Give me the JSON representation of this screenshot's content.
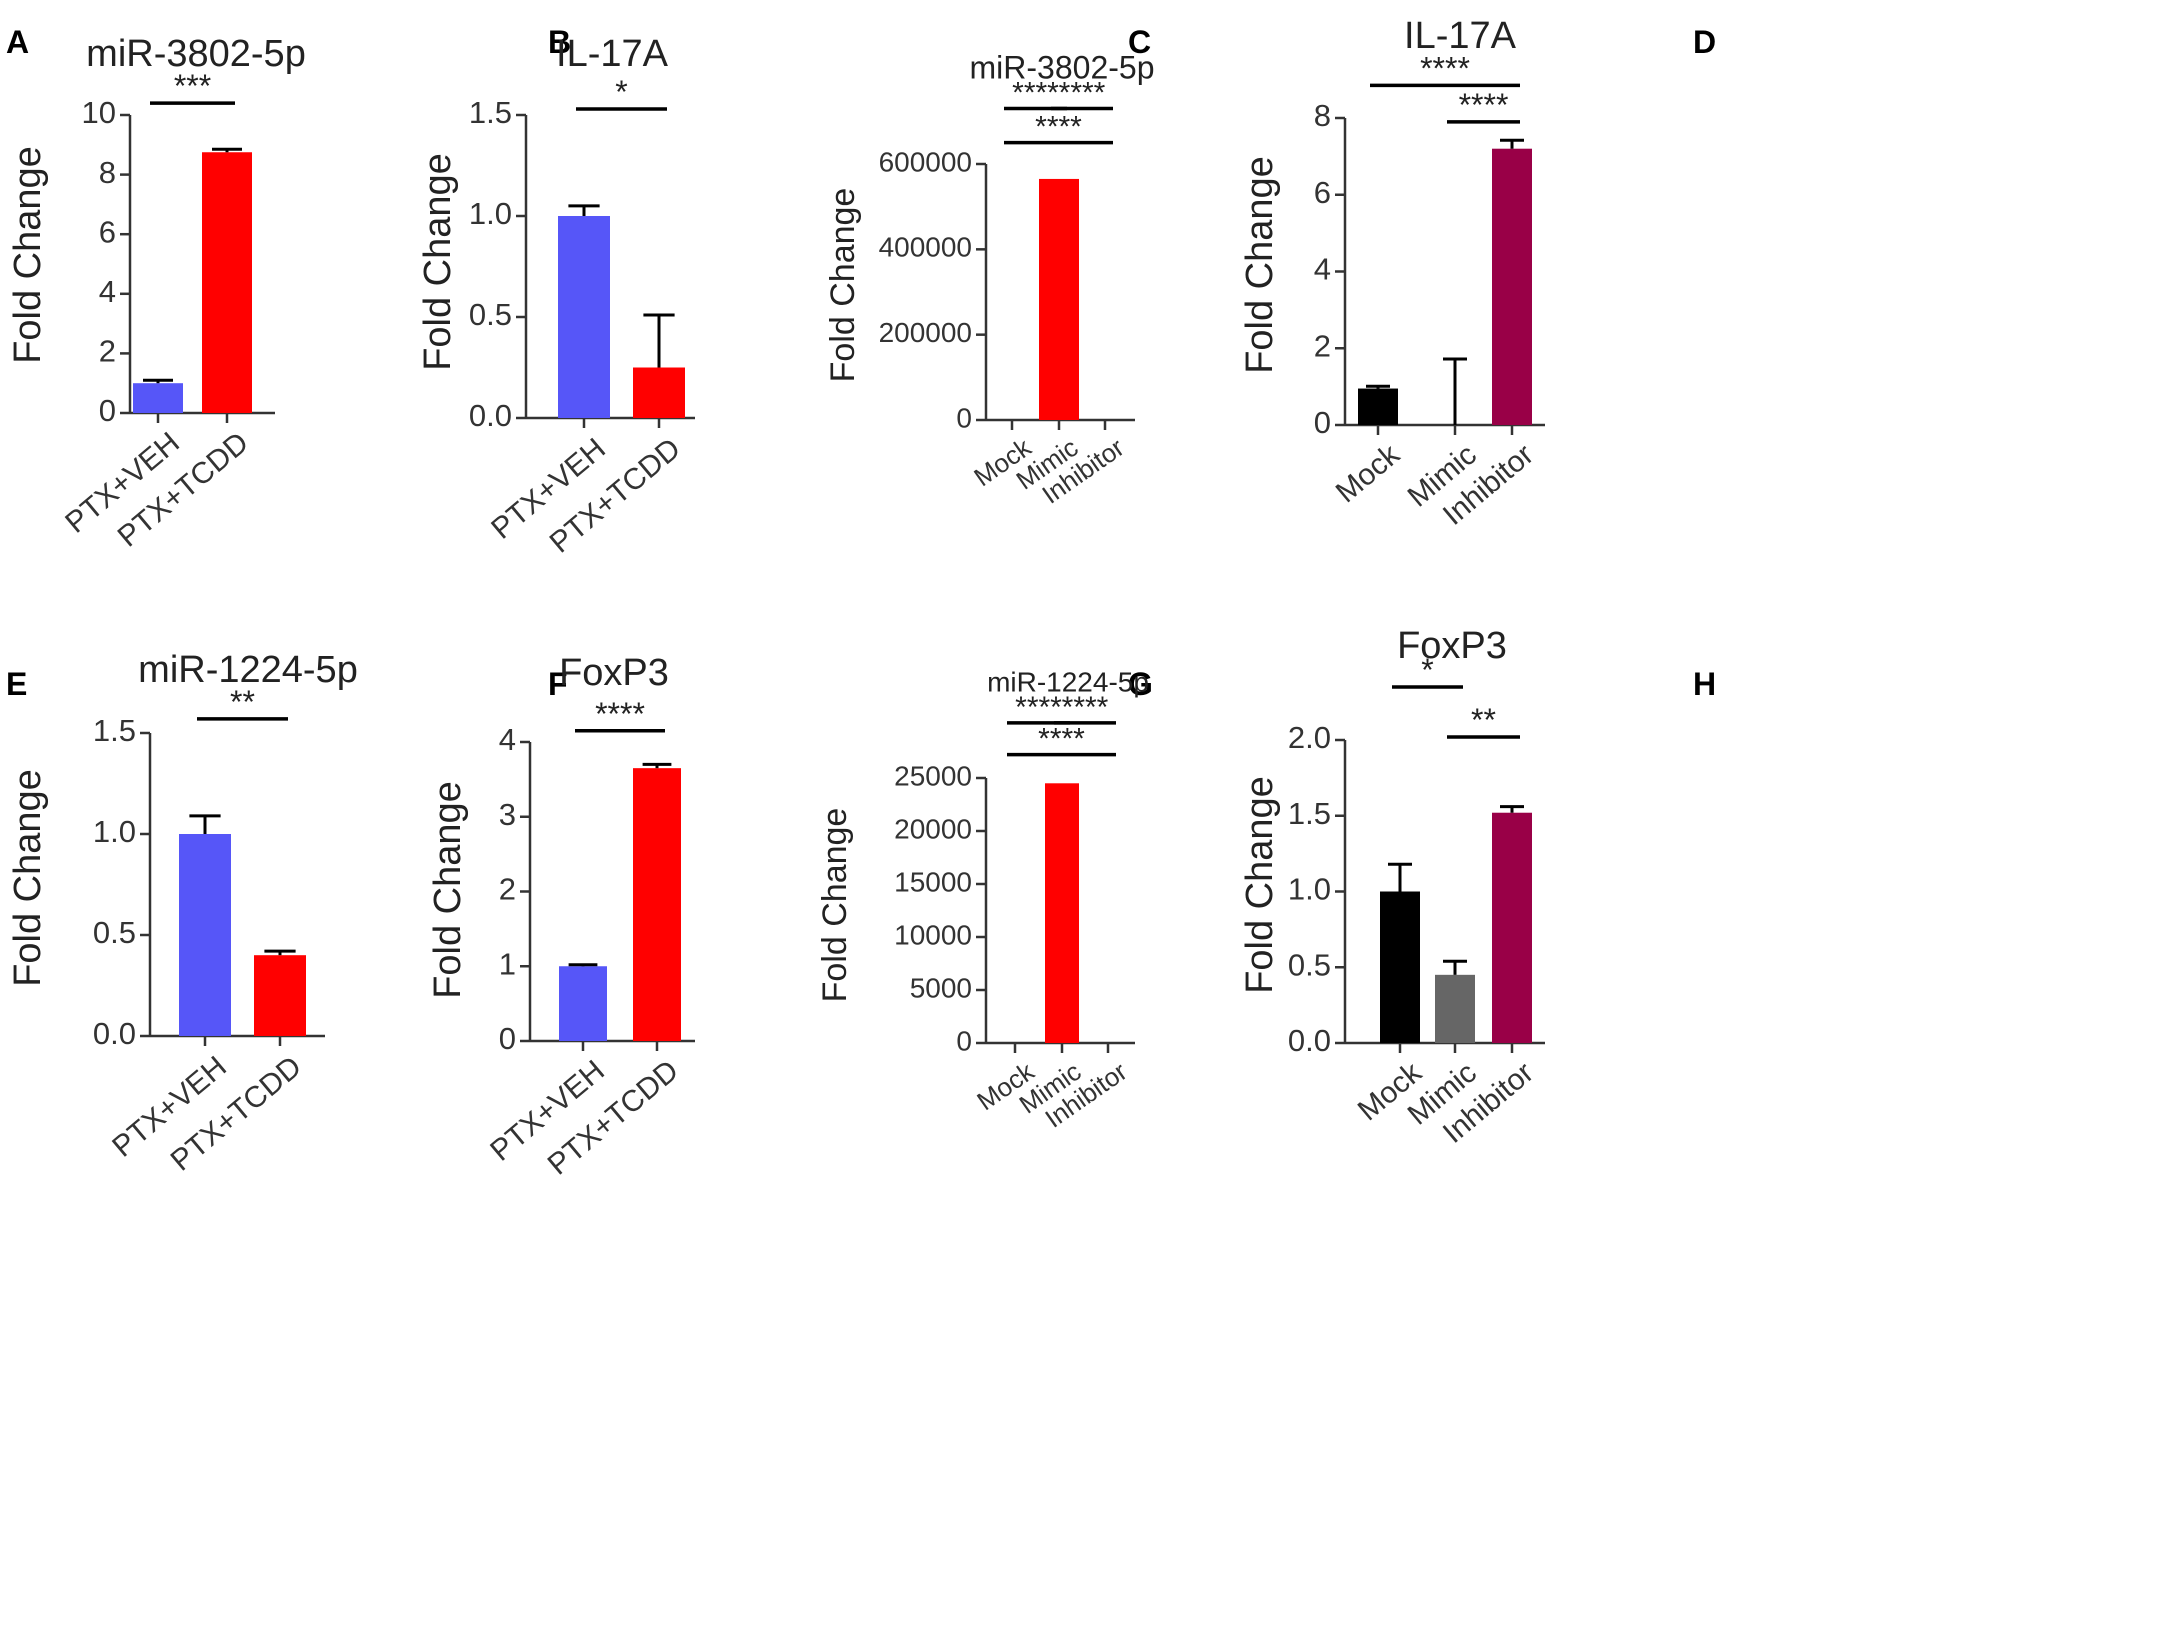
{
  "chart_data": [
    {
      "panel": "A",
      "type": "bar",
      "title": "miR-3802-5p",
      "ylabel": "Fold Change",
      "xlabel": "",
      "ylim": [
        0,
        10
      ],
      "yticks": [
        0,
        2,
        4,
        6,
        8,
        10
      ],
      "ytick_labels": [
        "0",
        "2",
        "4",
        "6",
        "8",
        "10"
      ],
      "categories": [
        "PTX+VEH",
        "PTX+TCDD"
      ],
      "values": [
        1.0,
        8.75
      ],
      "errors": [
        0.1,
        0.1
      ],
      "colors": [
        "#5656f8",
        "#ff0000"
      ],
      "significance": [
        {
          "from": 0,
          "to": 1,
          "label": "***",
          "y": 10.4
        }
      ]
    },
    {
      "panel": "B",
      "type": "bar",
      "title": "IL-17A",
      "ylabel": "Fold Change",
      "xlabel": "",
      "ylim": [
        0,
        1.5
      ],
      "yticks": [
        0,
        0.5,
        1.0,
        1.5
      ],
      "ytick_labels": [
        "0.0",
        "0.5",
        "1.0",
        "1.5"
      ],
      "categories": [
        "PTX+VEH",
        "PTX+TCDD"
      ],
      "values": [
        1.0,
        0.25
      ],
      "errors": [
        0.05,
        0.26
      ],
      "colors": [
        "#5656f8",
        "#ff0000"
      ],
      "significance": [
        {
          "from": 0,
          "to": 1,
          "label": "*",
          "y": 1.53
        }
      ]
    },
    {
      "panel": "C",
      "type": "bar",
      "title": "miR-3802-5p",
      "ylabel": "Fold Change",
      "xlabel": "",
      "ylim": [
        0,
        600000
      ],
      "yticks": [
        0,
        200000,
        400000,
        600000
      ],
      "ytick_labels": [
        "0",
        "200000",
        "400000",
        "600000"
      ],
      "categories": [
        "Mock",
        "Mimic",
        "Inhibitor"
      ],
      "values": [
        0,
        565000,
        0
      ],
      "errors": [
        0,
        0,
        0
      ],
      "colors": [
        "#000000",
        "#ff0000",
        "#990047"
      ],
      "significance": [
        {
          "from": 0,
          "to": 1,
          "label": "****",
          "y": 730000
        },
        {
          "from": 1,
          "to": 2,
          "label": "****",
          "y": 730000
        },
        {
          "from": 0,
          "to": 2,
          "label": "****",
          "y": 650000
        }
      ]
    },
    {
      "panel": "D",
      "type": "bar",
      "title": "IL-17A",
      "ylabel": "Fold Change",
      "xlabel": "",
      "ylim": [
        0,
        8
      ],
      "yticks": [
        0,
        2,
        4,
        6,
        8
      ],
      "ytick_labels": [
        "0",
        "2",
        "4",
        "6",
        "8"
      ],
      "categories": [
        "Mock",
        "Mimic",
        "Inhibitor"
      ],
      "values": [
        0.95,
        0,
        7.2
      ],
      "errors": [
        0.06,
        1.72,
        0.22
      ],
      "colors": [
        "#000000",
        "#000000",
        "#990047"
      ],
      "significance": [
        {
          "from": 0,
          "to": 2,
          "label": "****",
          "y": 8.85
        },
        {
          "from": 1,
          "to": 2,
          "label": "****",
          "y": 7.9
        }
      ]
    },
    {
      "panel": "E",
      "type": "bar",
      "title": "miR-1224-5p",
      "ylabel": "Fold Change",
      "xlabel": "",
      "ylim": [
        0,
        1.5
      ],
      "yticks": [
        0,
        0.5,
        1.0,
        1.5
      ],
      "ytick_labels": [
        "0.0",
        "0.5",
        "1.0",
        "1.5"
      ],
      "categories": [
        "PTX+VEH",
        "PTX+TCDD"
      ],
      "values": [
        1.0,
        0.4
      ],
      "errors": [
        0.09,
        0.02
      ],
      "colors": [
        "#5656f8",
        "#ff0000"
      ],
      "significance": [
        {
          "from": 0,
          "to": 1,
          "label": "**",
          "y": 1.57
        }
      ]
    },
    {
      "panel": "F",
      "type": "bar",
      "title": "FoxP3",
      "ylabel": "Fold Change",
      "xlabel": "",
      "ylim": [
        0,
        4
      ],
      "yticks": [
        0,
        1,
        2,
        3,
        4
      ],
      "ytick_labels": [
        "0",
        "1",
        "2",
        "3",
        "4"
      ],
      "categories": [
        "PTX+VEH",
        "PTX+TCDD"
      ],
      "values": [
        1.0,
        3.65
      ],
      "errors": [
        0.02,
        0.05
      ],
      "colors": [
        "#5656f8",
        "#ff0000"
      ],
      "significance": [
        {
          "from": 0,
          "to": 1,
          "label": "****",
          "y": 4.15
        }
      ]
    },
    {
      "panel": "G",
      "type": "bar",
      "title": "miR-1224-5p",
      "ylabel": "Fold Change",
      "xlabel": "",
      "ylim": [
        0,
        25000
      ],
      "yticks": [
        0,
        5000,
        10000,
        15000,
        20000,
        25000
      ],
      "ytick_labels": [
        "0",
        "5000",
        "10000",
        "15000",
        "20000",
        "25000"
      ],
      "categories": [
        "Mock",
        "Mimic",
        "Inhibitor"
      ],
      "values": [
        0,
        24500,
        0
      ],
      "errors": [
        0,
        0,
        0
      ],
      "colors": [
        "#000000",
        "#ff0000",
        "#990047"
      ],
      "significance": [
        {
          "from": 0,
          "to": 1,
          "label": "****",
          "y": 30200
        },
        {
          "from": 1,
          "to": 2,
          "label": "****",
          "y": 30200
        },
        {
          "from": 0,
          "to": 2,
          "label": "****",
          "y": 27200
        }
      ]
    },
    {
      "panel": "H",
      "type": "bar",
      "title": "FoxP3",
      "ylabel": "Fold Change",
      "xlabel": "",
      "ylim": [
        0,
        2.0
      ],
      "yticks": [
        0,
        0.5,
        1.0,
        1.5,
        2.0
      ],
      "ytick_labels": [
        "0.0",
        "0.5",
        "1.0",
        "1.5",
        "2.0"
      ],
      "categories": [
        "Mock",
        "Mimic",
        "Inhibitor"
      ],
      "values": [
        1.0,
        0.45,
        1.52
      ],
      "errors": [
        0.18,
        0.09,
        0.04
      ],
      "colors": [
        "#000000",
        "#666666",
        "#990047"
      ],
      "significance": [
        {
          "from": 0,
          "to": 1,
          "label": "*",
          "y": 2.35
        },
        {
          "from": 1,
          "to": 2,
          "label": "**",
          "y": 2.02
        }
      ]
    }
  ]
}
